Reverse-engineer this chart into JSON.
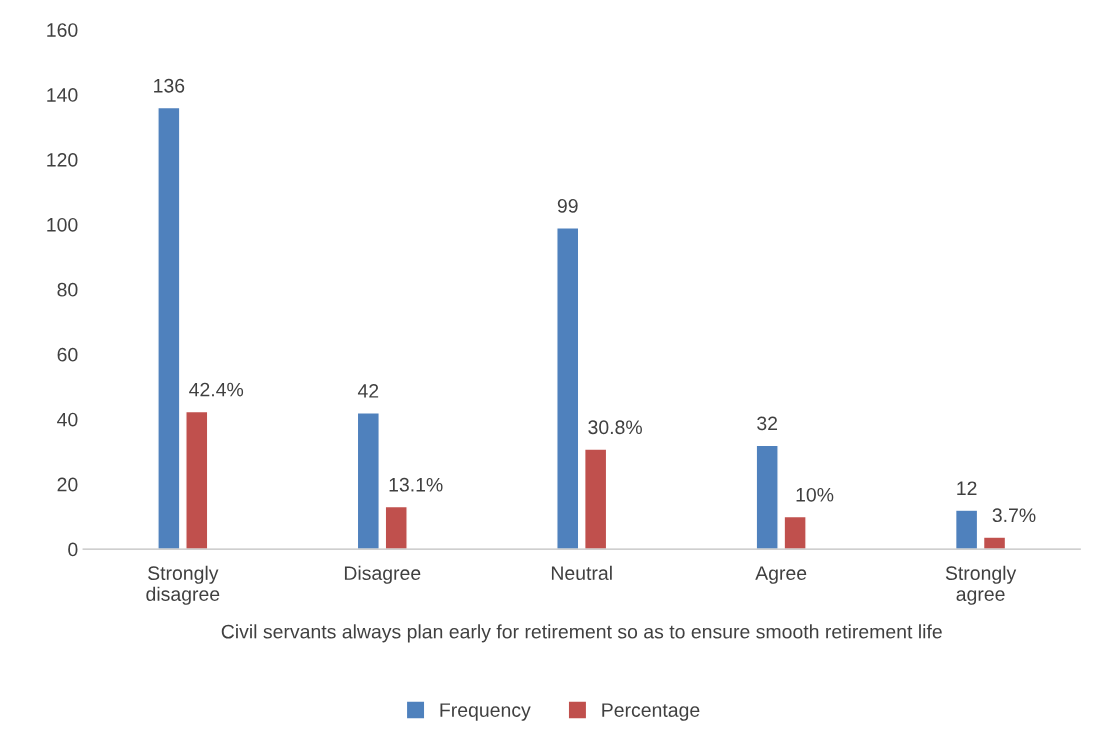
{
  "chart_data": {
    "type": "bar",
    "xlabel": "Civil servants always plan early for retirement so as to ensure smooth retirement life",
    "categories": [
      "Strongly\ndisagree",
      "Disagree",
      "Neutral",
      "Agree",
      "Strongly\nagree"
    ],
    "series": [
      {
        "name": "Frequency",
        "color": "#4f81bd",
        "values": [
          136,
          42,
          99,
          32,
          12
        ],
        "value_labels": [
          "136",
          "42",
          "99",
          "32",
          "12"
        ]
      },
      {
        "name": "Percentage",
        "color": "#c0504d",
        "values": [
          42.4,
          13.1,
          30.8,
          10,
          3.7
        ],
        "value_labels": [
          "42.4%",
          "13.1%",
          "30.8%",
          "10%",
          "3.7%"
        ]
      }
    ],
    "ylim": [
      0,
      160
    ],
    "yticks": [
      0,
      20,
      40,
      60,
      80,
      100,
      120,
      140,
      160
    ],
    "grid": false,
    "legend": "bottom"
  }
}
